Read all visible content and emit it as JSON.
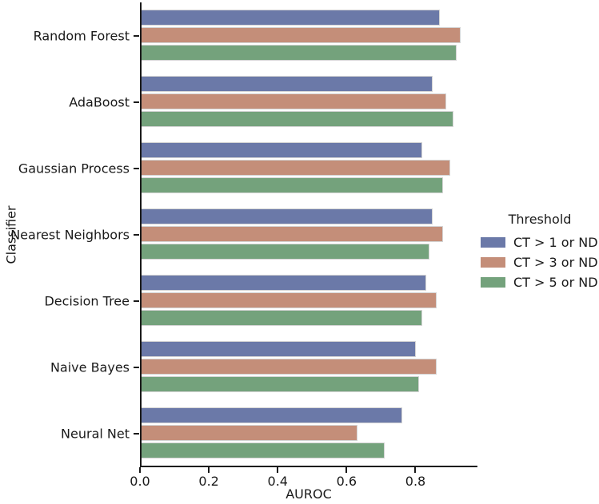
{
  "chart_data": {
    "type": "bar",
    "orientation": "horizontal",
    "title": "",
    "xlabel": "AUROC",
    "ylabel": "Classifier",
    "xlim": [
      0.0,
      0.98
    ],
    "grid": false,
    "xticks": [
      0.0,
      0.2,
      0.4,
      0.6,
      0.8
    ],
    "xtick_labels": [
      "0.0",
      "0.2",
      "0.4",
      "0.6",
      "0.8"
    ],
    "categories": [
      "Random Forest",
      "AdaBoost",
      "Gaussian Process",
      "Nearest Neighbors",
      "Decision Tree",
      "Naive Bayes",
      "Neural Net"
    ],
    "legend": {
      "title": "Threshold",
      "position": "center-right",
      "frame": false
    },
    "series": [
      {
        "name": "CT > 1 or ND",
        "color": "#6b79a8",
        "values": [
          0.87,
          0.85,
          0.82,
          0.85,
          0.83,
          0.8,
          0.76
        ]
      },
      {
        "name": "CT > 3 or ND",
        "color": "#c48e79",
        "values": [
          0.93,
          0.89,
          0.9,
          0.88,
          0.86,
          0.86,
          0.63
        ]
      },
      {
        "name": "CT > 5 or ND",
        "color": "#74a27c",
        "values": [
          0.92,
          0.91,
          0.88,
          0.84,
          0.82,
          0.81,
          0.71
        ]
      }
    ],
    "colors": {
      "axis": "#1a1a1a",
      "text": "#1a1a1a",
      "background": "#ffffff",
      "bar_edge": "#d4d4d4"
    }
  }
}
